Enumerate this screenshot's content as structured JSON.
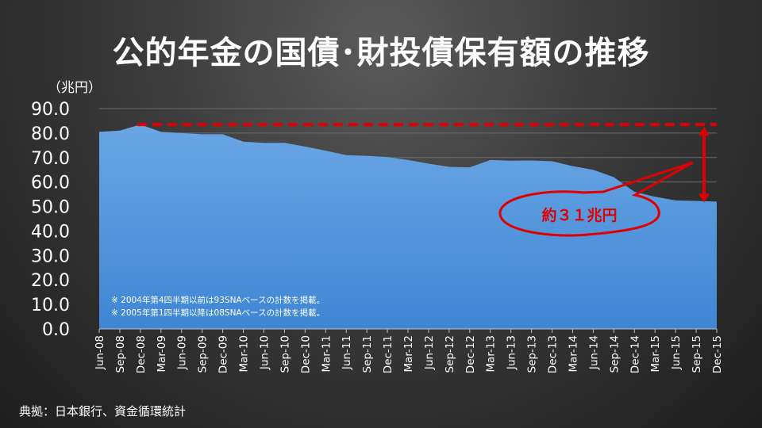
{
  "title": "公的年金の国債･財投債保有額の推移",
  "unit_label": "（兆円）",
  "source": "典拠：日本銀行、資金循環統計",
  "notes": [
    "※ 2004年第4四半期以前は93SNAベースの計数を掲載。",
    "※ 2005年第1四半期以降は08SNAベースの計数を掲載。"
  ],
  "callout": "約３１兆円",
  "colors": {
    "area_fill": "#4a90d9",
    "area_top": "#6aa6e4",
    "reference_line": "#e00000",
    "grid": "#6a6a6a"
  },
  "chart_data": {
    "type": "area",
    "categories": [
      "Jun-08",
      "Sep-08",
      "Dec-08",
      "Mar-09",
      "Jun-09",
      "Sep-09",
      "Dec-09",
      "Mar-10",
      "Jun-10",
      "Sep-10",
      "Dec-10",
      "Mar-11",
      "Jun-11",
      "Sep-11",
      "Dec-11",
      "Mar-12",
      "Jun-12",
      "Sep-12",
      "Dec-12",
      "Mar-13",
      "Jun-13",
      "Sep-13",
      "Dec-13",
      "Mar-14",
      "Jun-14",
      "Sep-14",
      "Dec-14",
      "Mar-15",
      "Jun-15",
      "Sep-15",
      "Dec-15"
    ],
    "values": [
      80.5,
      81.0,
      83.5,
      80.5,
      80.0,
      79.5,
      79.5,
      76.5,
      76.0,
      76.0,
      74.5,
      72.8,
      71.0,
      70.7,
      70.2,
      69.0,
      67.5,
      66.2,
      66.0,
      69.0,
      68.7,
      68.8,
      68.5,
      66.5,
      65.0,
      62.0,
      56.0,
      54.0,
      52.5,
      52.3,
      52.0
    ],
    "ylim": [
      0,
      90
    ],
    "yticks": [
      "0.0",
      "10.0",
      "20.0",
      "30.0",
      "40.0",
      "50.0",
      "60.0",
      "70.0",
      "80.0",
      "90.0"
    ],
    "reference_value": 83.5,
    "annotated_gap": "約３１兆円",
    "grid": true,
    "legend": "none"
  }
}
